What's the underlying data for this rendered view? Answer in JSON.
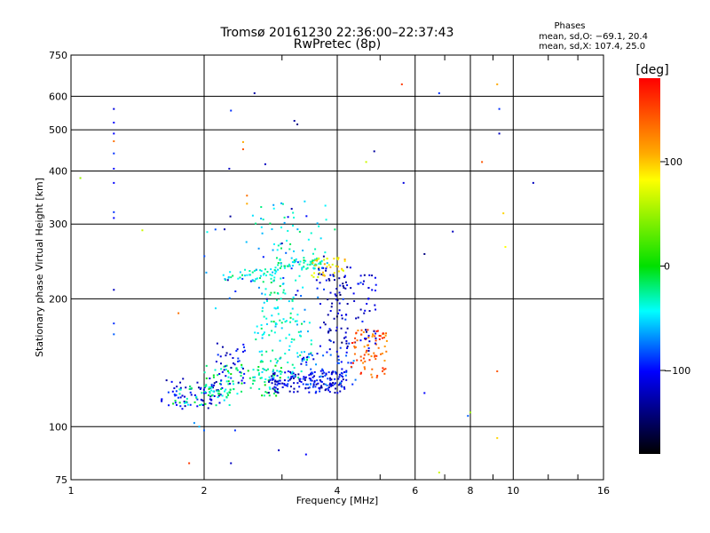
{
  "chart_data": {
    "type": "scatter",
    "title": "Tromsø 20161230 22:36:00–22:37:43",
    "subtitle": "RwPretec (8p)",
    "xlabel": "Frequency [MHz]",
    "ylabel": "Stationary phase Virtual Height [km]",
    "x_scale": "log2",
    "y_scale": "log",
    "xlim": [
      1,
      16
    ],
    "ylim": [
      75,
      750
    ],
    "x_ticks": [
      "1",
      "2",
      "4",
      "6",
      "8",
      "10",
      "16"
    ],
    "x_tick_values": [
      1,
      2,
      4,
      6,
      8,
      10,
      16
    ],
    "y_ticks": [
      "75",
      "100",
      "200",
      "300",
      "400",
      "500",
      "600",
      "750"
    ],
    "y_tick_values": [
      75,
      100,
      200,
      300,
      400,
      500,
      600,
      750
    ],
    "grid": true,
    "phases_info": {
      "title": "Phases",
      "line1": "mean, sd,O: −69.1, 20.4",
      "line2": "mean, sd,X: 107.4, 25.0"
    },
    "colorbar": {
      "label": "[deg]",
      "range": [
        -180,
        180
      ],
      "ticks": [
        "100",
        "0",
        "−100"
      ],
      "tick_values": [
        100,
        0,
        -100
      ],
      "colors": [
        "#ff0000",
        "#ffaa00",
        "#ffff00",
        "#00e000",
        "#00ffff",
        "#0000ff",
        "#000000"
      ]
    },
    "points": [
      [
        1.25,
        560,
        -110
      ],
      [
        1.25,
        520,
        -100
      ],
      [
        1.25,
        490,
        -100
      ],
      [
        1.25,
        470,
        140
      ],
      [
        1.25,
        440,
        -90
      ],
      [
        1.25,
        405,
        -100
      ],
      [
        1.25,
        375,
        -100
      ],
      [
        1.25,
        320,
        -90
      ],
      [
        1.25,
        310,
        -100
      ],
      [
        1.25,
        210,
        -120
      ],
      [
        1.25,
        175,
        -90
      ],
      [
        1.25,
        165,
        -80
      ],
      [
        1.05,
        385,
        60
      ],
      [
        1.45,
        290,
        80
      ],
      [
        1.75,
        185,
        140
      ],
      [
        1.85,
        82,
        160
      ],
      [
        1.9,
        102,
        -70
      ],
      [
        1.95,
        100,
        -60
      ],
      [
        2.0,
        98,
        -80
      ],
      [
        2.3,
        555,
        -90
      ],
      [
        2.28,
        405,
        -120
      ],
      [
        2.3,
        82,
        -120
      ],
      [
        2.35,
        98,
        -90
      ],
      [
        2.45,
        468,
        120
      ],
      [
        2.45,
        450,
        150
      ],
      [
        2.5,
        350,
        140
      ],
      [
        2.5,
        335,
        120
      ],
      [
        2.6,
        610,
        -130
      ],
      [
        2.75,
        415,
        -120
      ],
      [
        3.2,
        525,
        -130
      ],
      [
        3.25,
        515,
        -140
      ],
      [
        2.95,
        88,
        -120
      ],
      [
        3.4,
        86,
        -100
      ],
      [
        4.65,
        420,
        80
      ],
      [
        4.85,
        445,
        -130
      ],
      [
        5.6,
        640,
        160
      ],
      [
        5.65,
        375,
        -110
      ],
      [
        6.3,
        255,
        -140
      ],
      [
        6.3,
        120,
        -100
      ],
      [
        6.8,
        610,
        -90
      ],
      [
        6.8,
        78,
        80
      ],
      [
        7.3,
        288,
        -120
      ],
      [
        8.0,
        108,
        60
      ],
      [
        7.9,
        106,
        -80
      ],
      [
        8.5,
        420,
        150
      ],
      [
        9.2,
        640,
        120
      ],
      [
        9.3,
        560,
        -90
      ],
      [
        9.3,
        490,
        -120
      ],
      [
        9.5,
        318,
        110
      ],
      [
        9.6,
        265,
        100
      ],
      [
        9.2,
        135,
        150
      ],
      [
        9.2,
        94,
        110
      ],
      [
        11.1,
        375,
        -120
      ]
    ],
    "clusters": [
      {
        "x": [
          1.6,
          2.2
        ],
        "y": [
          110,
          130
        ],
        "phase": -110,
        "count": 70
      },
      {
        "x": [
          1.7,
          2.3
        ],
        "y": [
          112,
          125
        ],
        "phase": -30,
        "count": 45
      },
      {
        "x": [
          2.0,
          3.0
        ],
        "y": [
          118,
          140
        ],
        "phase": -20,
        "count": 90
      },
      {
        "x": [
          2.1,
          2.5
        ],
        "y": [
          125,
          160
        ],
        "phase": -110,
        "count": 40
      },
      {
        "x": [
          2.8,
          4.2
        ],
        "y": [
          120,
          135
        ],
        "phase": -110,
        "count": 160
      },
      {
        "x": [
          3.3,
          4.4
        ],
        "y": [
          125,
          150
        ],
        "phase": -90,
        "count": 60
      },
      {
        "x": [
          2.6,
          3.5
        ],
        "y": [
          130,
          180
        ],
        "phase": -40,
        "count": 90
      },
      {
        "x": [
          2.7,
          3.2
        ],
        "y": [
          175,
          220
        ],
        "phase": -30,
        "count": 40
      },
      {
        "x": [
          2.2,
          3.0
        ],
        "y": [
          220,
          235
        ],
        "phase": -40,
        "count": 50
      },
      {
        "x": [
          2.9,
          3.8
        ],
        "y": [
          235,
          250
        ],
        "phase": -35,
        "count": 60
      },
      {
        "x": [
          3.5,
          4.2
        ],
        "y": [
          225,
          250
        ],
        "phase": 100,
        "count": 40
      },
      {
        "x": [
          3.6,
          4.4
        ],
        "y": [
          150,
          240
        ],
        "phase": -110,
        "count": 45
      },
      {
        "x": [
          3.7,
          4.2
        ],
        "y": [
          150,
          225
        ],
        "phase": -130,
        "count": 35
      },
      {
        "x": [
          4.3,
          5.2
        ],
        "y": [
          130,
          170
        ],
        "phase": 150,
        "count": 80
      },
      {
        "x": [
          4.4,
          4.9
        ],
        "y": [
          150,
          230
        ],
        "phase": -110,
        "count": 40
      },
      {
        "x": [
          2.5,
          4.0
        ],
        "y": [
          255,
          340
        ],
        "phase": -40,
        "count": 40
      },
      {
        "x": [
          2.0,
          3.8
        ],
        "y": [
          180,
          300
        ],
        "phase": -60,
        "count": 30
      },
      {
        "x": [
          2.2,
          4.3
        ],
        "y": [
          190,
          330
        ],
        "phase": -110,
        "count": 25
      }
    ]
  }
}
